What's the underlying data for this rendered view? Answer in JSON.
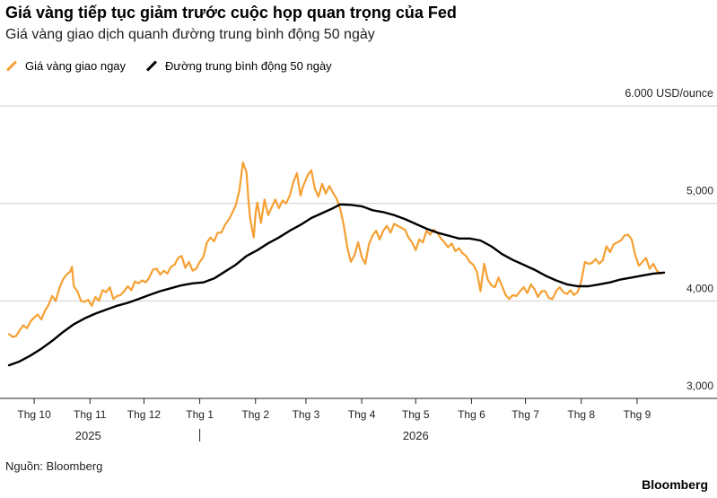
{
  "header": {
    "title": "Giá vàng tiếp tục giảm trước cuộc họp quan trọng của Fed",
    "subtitle": "Giá vàng giao dịch quanh đường trung bình động 50 ngày"
  },
  "footer": {
    "source": "Nguồn: Bloomberg",
    "brand": "Bloomberg"
  },
  "chart_data": {
    "type": "line",
    "title": "Giá vàng tiếp tục giảm trước cuộc họp quan trọng của Fed",
    "subtitle": "Giá vàng giao dịch quanh đường trung bình động 50 ngày",
    "unit_label": "6.000 USD/ounce",
    "ylim": [
      3000,
      6000
    ],
    "y_ticks": [
      3000,
      4000,
      5000
    ],
    "y_tick_labels": [
      "3,000",
      "4,000",
      "5,000"
    ],
    "x_ticks": [
      {
        "label": "Thg 10",
        "day": 0
      },
      {
        "label": "Thg 11",
        "day": 31
      },
      {
        "label": "Thg 12",
        "day": 61
      },
      {
        "label": "Thg 1",
        "day": 92
      },
      {
        "label": "Thg 2",
        "day": 123
      },
      {
        "label": "Thg 3",
        "day": 151
      },
      {
        "label": "Thg 4",
        "day": 182
      },
      {
        "label": "Thg 5",
        "day": 212
      },
      {
        "label": "Thg 6",
        "day": 243
      },
      {
        "label": "Thg 7",
        "day": 273
      },
      {
        "label": "Thg 8",
        "day": 304
      },
      {
        "label": "Thg 9",
        "day": 335
      }
    ],
    "x_range_days": [
      -15,
      350
    ],
    "year_labels": [
      {
        "label": "2025",
        "day": 30
      },
      {
        "label": "2026",
        "day": 212
      }
    ],
    "year_divider_day": 92,
    "grid": true,
    "legend_position": "top-left",
    "series": [
      {
        "name": "Giá vàng giao ngay",
        "color": "#f5a033",
        "width": 2.2,
        "points": [
          [
            -14,
            3660
          ],
          [
            -12,
            3630
          ],
          [
            -10,
            3640
          ],
          [
            -8,
            3700
          ],
          [
            -6,
            3750
          ],
          [
            -4,
            3720
          ],
          [
            -2,
            3790
          ],
          [
            0,
            3830
          ],
          [
            2,
            3860
          ],
          [
            4,
            3810
          ],
          [
            6,
            3900
          ],
          [
            8,
            3960
          ],
          [
            10,
            4050
          ],
          [
            12,
            4000
          ],
          [
            14,
            4130
          ],
          [
            16,
            4220
          ],
          [
            18,
            4270
          ],
          [
            20,
            4300
          ],
          [
            21,
            4350
          ],
          [
            22,
            4150
          ],
          [
            24,
            4100
          ],
          [
            26,
            4000
          ],
          [
            28,
            3990
          ],
          [
            30,
            4010
          ],
          [
            32,
            3950
          ],
          [
            34,
            4040
          ],
          [
            36,
            4000
          ],
          [
            38,
            4110
          ],
          [
            40,
            4090
          ],
          [
            42,
            4140
          ],
          [
            44,
            4020
          ],
          [
            46,
            4050
          ],
          [
            48,
            4060
          ],
          [
            50,
            4100
          ],
          [
            52,
            4150
          ],
          [
            54,
            4110
          ],
          [
            56,
            4200
          ],
          [
            58,
            4180
          ],
          [
            60,
            4210
          ],
          [
            62,
            4190
          ],
          [
            64,
            4240
          ],
          [
            66,
            4320
          ],
          [
            68,
            4330
          ],
          [
            70,
            4270
          ],
          [
            72,
            4310
          ],
          [
            74,
            4280
          ],
          [
            76,
            4350
          ],
          [
            78,
            4370
          ],
          [
            80,
            4440
          ],
          [
            82,
            4460
          ],
          [
            84,
            4340
          ],
          [
            86,
            4400
          ],
          [
            88,
            4310
          ],
          [
            90,
            4330
          ],
          [
            92,
            4400
          ],
          [
            94,
            4450
          ],
          [
            96,
            4600
          ],
          [
            98,
            4650
          ],
          [
            100,
            4610
          ],
          [
            102,
            4700
          ],
          [
            104,
            4700
          ],
          [
            106,
            4780
          ],
          [
            108,
            4830
          ],
          [
            110,
            4900
          ],
          [
            112,
            4980
          ],
          [
            114,
            5130
          ],
          [
            116,
            5420
          ],
          [
            118,
            5320
          ],
          [
            119,
            5050
          ],
          [
            120,
            4850
          ],
          [
            121,
            4750
          ],
          [
            122,
            4650
          ],
          [
            123,
            4900
          ],
          [
            124,
            5010
          ],
          [
            125,
            4900
          ],
          [
            126,
            4800
          ],
          [
            128,
            5040
          ],
          [
            130,
            4880
          ],
          [
            132,
            4960
          ],
          [
            134,
            5040
          ],
          [
            136,
            4950
          ],
          [
            138,
            5030
          ],
          [
            140,
            5000
          ],
          [
            142,
            5080
          ],
          [
            144,
            5220
          ],
          [
            146,
            5310
          ],
          [
            148,
            5080
          ],
          [
            149,
            5150
          ],
          [
            150,
            5200
          ],
          [
            152,
            5290
          ],
          [
            154,
            5340
          ],
          [
            156,
            5150
          ],
          [
            158,
            5070
          ],
          [
            160,
            5200
          ],
          [
            162,
            5100
          ],
          [
            164,
            5180
          ],
          [
            166,
            5110
          ],
          [
            168,
            5050
          ],
          [
            170,
            4950
          ],
          [
            172,
            4780
          ],
          [
            174,
            4550
          ],
          [
            176,
            4400
          ],
          [
            178,
            4470
          ],
          [
            180,
            4600
          ],
          [
            182,
            4450
          ],
          [
            184,
            4380
          ],
          [
            186,
            4580
          ],
          [
            188,
            4670
          ],
          [
            190,
            4720
          ],
          [
            192,
            4630
          ],
          [
            194,
            4720
          ],
          [
            196,
            4770
          ],
          [
            198,
            4700
          ],
          [
            200,
            4790
          ],
          [
            202,
            4770
          ],
          [
            204,
            4750
          ],
          [
            206,
            4730
          ],
          [
            208,
            4650
          ],
          [
            210,
            4600
          ],
          [
            212,
            4520
          ],
          [
            214,
            4630
          ],
          [
            216,
            4600
          ],
          [
            218,
            4720
          ],
          [
            220,
            4680
          ],
          [
            222,
            4730
          ],
          [
            224,
            4700
          ],
          [
            226,
            4640
          ],
          [
            228,
            4600
          ],
          [
            230,
            4550
          ],
          [
            232,
            4590
          ],
          [
            234,
            4510
          ],
          [
            236,
            4540
          ],
          [
            238,
            4490
          ],
          [
            240,
            4460
          ],
          [
            242,
            4400
          ],
          [
            244,
            4370
          ],
          [
            246,
            4300
          ],
          [
            248,
            4100
          ],
          [
            250,
            4380
          ],
          [
            252,
            4220
          ],
          [
            254,
            4160
          ],
          [
            256,
            4140
          ],
          [
            258,
            4240
          ],
          [
            260,
            4150
          ],
          [
            262,
            4060
          ],
          [
            264,
            4020
          ],
          [
            266,
            4060
          ],
          [
            268,
            4050
          ],
          [
            270,
            4100
          ],
          [
            272,
            4140
          ],
          [
            274,
            4080
          ],
          [
            276,
            4170
          ],
          [
            278,
            4120
          ],
          [
            280,
            4040
          ],
          [
            282,
            4100
          ],
          [
            284,
            4100
          ],
          [
            286,
            4030
          ],
          [
            288,
            4020
          ],
          [
            290,
            4100
          ],
          [
            292,
            4140
          ],
          [
            294,
            4090
          ],
          [
            296,
            4070
          ],
          [
            298,
            4110
          ],
          [
            300,
            4060
          ],
          [
            302,
            4090
          ],
          [
            304,
            4200
          ],
          [
            306,
            4400
          ],
          [
            308,
            4380
          ],
          [
            310,
            4390
          ],
          [
            312,
            4430
          ],
          [
            314,
            4380
          ],
          [
            316,
            4420
          ],
          [
            318,
            4560
          ],
          [
            320,
            4500
          ],
          [
            322,
            4580
          ],
          [
            324,
            4600
          ],
          [
            326,
            4620
          ],
          [
            328,
            4670
          ],
          [
            330,
            4680
          ],
          [
            332,
            4630
          ],
          [
            334,
            4470
          ],
          [
            336,
            4360
          ],
          [
            338,
            4400
          ],
          [
            340,
            4440
          ],
          [
            342,
            4330
          ],
          [
            344,
            4380
          ],
          [
            346,
            4310
          ],
          [
            348,
            4280
          ],
          [
            350,
            4290
          ]
        ]
      },
      {
        "name": "Đường trung bình động 50 ngày",
        "color": "#000000",
        "width": 2.4,
        "points": [
          [
            -14,
            3340
          ],
          [
            -8,
            3380
          ],
          [
            -2,
            3440
          ],
          [
            4,
            3510
          ],
          [
            10,
            3590
          ],
          [
            16,
            3680
          ],
          [
            22,
            3760
          ],
          [
            28,
            3820
          ],
          [
            34,
            3870
          ],
          [
            40,
            3910
          ],
          [
            46,
            3950
          ],
          [
            52,
            3980
          ],
          [
            58,
            4020
          ],
          [
            64,
            4060
          ],
          [
            70,
            4100
          ],
          [
            76,
            4130
          ],
          [
            82,
            4160
          ],
          [
            88,
            4180
          ],
          [
            94,
            4190
          ],
          [
            100,
            4230
          ],
          [
            106,
            4300
          ],
          [
            112,
            4370
          ],
          [
            118,
            4460
          ],
          [
            124,
            4520
          ],
          [
            130,
            4590
          ],
          [
            136,
            4650
          ],
          [
            142,
            4720
          ],
          [
            148,
            4780
          ],
          [
            154,
            4850
          ],
          [
            160,
            4900
          ],
          [
            166,
            4950
          ],
          [
            170,
            4990
          ],
          [
            176,
            4985
          ],
          [
            182,
            4970
          ],
          [
            188,
            4930
          ],
          [
            194,
            4910
          ],
          [
            200,
            4880
          ],
          [
            206,
            4840
          ],
          [
            212,
            4790
          ],
          [
            218,
            4740
          ],
          [
            224,
            4700
          ],
          [
            230,
            4670
          ],
          [
            236,
            4640
          ],
          [
            242,
            4640
          ],
          [
            248,
            4620
          ],
          [
            254,
            4560
          ],
          [
            260,
            4480
          ],
          [
            266,
            4420
          ],
          [
            272,
            4370
          ],
          [
            278,
            4320
          ],
          [
            284,
            4260
          ],
          [
            290,
            4210
          ],
          [
            296,
            4170
          ],
          [
            302,
            4150
          ],
          [
            308,
            4150
          ],
          [
            314,
            4170
          ],
          [
            320,
            4190
          ],
          [
            326,
            4220
          ],
          [
            332,
            4240
          ],
          [
            338,
            4260
          ],
          [
            344,
            4280
          ],
          [
            350,
            4290
          ]
        ]
      }
    ]
  }
}
